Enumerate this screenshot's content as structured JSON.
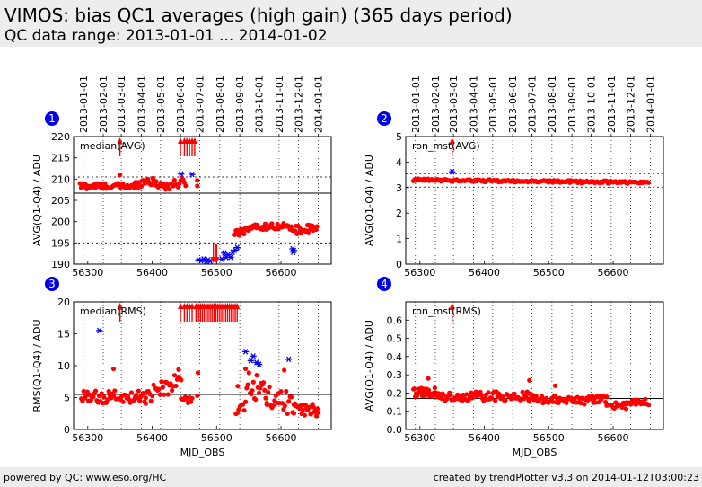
{
  "header": {
    "title": "VIMOS: bias QC1 averages (high gain) (365 days period)",
    "subtitle": "QC data range: 2013-01-01 ... 2014-01-02"
  },
  "footer": {
    "left": "powered by QC: www.eso.org/HC",
    "right": "created by trendPlotter v3.3 on 2014-01-12T03:00:23"
  },
  "date_axis": {
    "labels": [
      "2013-01-01",
      "2013-02-01",
      "2013-03-01",
      "2013-04-01",
      "2013-05-01",
      "2013-06-01",
      "2013-07-01",
      "2013-08-01",
      "2013-09-01",
      "2013-10-01",
      "2013-11-01",
      "2013-12-01",
      "2014-01-01"
    ],
    "mjd": [
      56293,
      56324,
      56352,
      56383,
      56413,
      56444,
      56474,
      56505,
      56536,
      56566,
      56597,
      56627,
      56658
    ]
  },
  "colors": {
    "data": "#ff0000",
    "outlier": "#0000ff",
    "badge": "#0000ee",
    "ref_line": "#000000"
  },
  "chart_data": [
    {
      "panel": "1",
      "type": "scatter",
      "label": "median(AVG)",
      "ylabel": "AVG(Q1-Q4) / ADU",
      "xlabel": "",
      "xlim": [
        56278,
        56678
      ],
      "ylim": [
        190,
        220
      ],
      "xticks": [
        56300,
        56400,
        56500,
        56600
      ],
      "yticks": [
        190,
        195,
        200,
        205,
        210,
        215,
        220
      ],
      "ref_line": 206.7,
      "dotted_lines": [
        195,
        210.5
      ],
      "segments": [
        {
          "x0": 56288,
          "x1": 56330,
          "y0": 208.4,
          "y1": 208.3,
          "n": 26,
          "jitter": 0.8
        },
        {
          "x0": 56335,
          "x1": 56372,
          "y0": 208.5,
          "y1": 208.2,
          "n": 22,
          "jitter": 0.7
        },
        {
          "x0": 56373,
          "x1": 56395,
          "y0": 208.6,
          "y1": 209.8,
          "n": 14,
          "jitter": 0.9
        },
        {
          "x0": 56396,
          "x1": 56418,
          "y0": 209.4,
          "y1": 208.6,
          "n": 14,
          "jitter": 1.0
        },
        {
          "x0": 56419,
          "x1": 56452,
          "y0": 208.2,
          "y1": 209.4,
          "n": 18,
          "jitter": 1.1
        },
        {
          "x0": 56527,
          "x1": 56547,
          "y0": 197.2,
          "y1": 198.2,
          "n": 14,
          "jitter": 0.9
        },
        {
          "x0": 56548,
          "x1": 56598,
          "y0": 198.6,
          "y1": 199.0,
          "n": 30,
          "jitter": 0.7
        },
        {
          "x0": 56600,
          "x1": 56618,
          "y0": 198.8,
          "y1": 198.5,
          "n": 10,
          "jitter": 0.6
        },
        {
          "x0": 56622,
          "x1": 56656,
          "y0": 198.0,
          "y1": 198.4,
          "n": 24,
          "jitter": 1.0
        }
      ],
      "points": [
        [
          56350,
          211.0
        ],
        [
          56470,
          209.7
        ],
        [
          56470,
          208.4
        ],
        [
          56604,
          199.6
        ]
      ],
      "outliers": [
        [
          56445,
          211.2
        ],
        [
          56462,
          211.1
        ],
        [
          56472,
          191.0
        ],
        [
          56476,
          190.8
        ],
        [
          56480,
          191.2
        ],
        [
          56484,
          190.6
        ],
        [
          56487,
          191.0
        ],
        [
          56490,
          190.7
        ],
        [
          56508,
          191.2
        ],
        [
          56512,
          192.6
        ],
        [
          56515,
          191.6
        ],
        [
          56518,
          192.2
        ],
        [
          56522,
          191.6
        ],
        [
          56525,
          192.8
        ],
        [
          56529,
          193.3
        ],
        [
          56532,
          193.9
        ],
        [
          56618,
          193.6
        ],
        [
          56619,
          192.8
        ],
        [
          56620,
          193.2
        ]
      ],
      "arrows_up": [
        56350,
        56444,
        56450,
        56454,
        56458,
        56462,
        56466
      ],
      "arrows_down": [
        56495,
        56498,
        56500
      ]
    },
    {
      "panel": "2",
      "type": "scatter",
      "label": "ron_mst(AVG)",
      "ylabel": "AVG(Q1-Q4) / ADU",
      "xlabel": "",
      "xlim": [
        56278,
        56678
      ],
      "ylim": [
        0,
        5
      ],
      "xticks": [
        56300,
        56400,
        56500,
        56600
      ],
      "yticks": [
        0,
        1,
        2,
        3,
        4,
        5
      ],
      "ref_line": 3.22,
      "dotted_lines": [
        3.02,
        3.55
      ],
      "segments": [
        {
          "x0": 56290,
          "x1": 56655,
          "y0": 3.3,
          "y1": 3.2,
          "n": 180,
          "jitter": 0.05
        }
      ],
      "points": [],
      "outliers": [
        [
          56350,
          3.62
        ]
      ],
      "arrows_up": [
        56350
      ],
      "arrows_down": []
    },
    {
      "panel": "3",
      "type": "scatter",
      "label": "median(RMS)",
      "ylabel": "RMS(Q1-Q4) / ADU",
      "xlabel": "MJD_OBS",
      "xlim": [
        56278,
        56678
      ],
      "ylim": [
        0,
        20
      ],
      "xticks": [
        56300,
        56400,
        56500,
        56600
      ],
      "yticks": [
        0,
        5,
        10,
        15,
        20
      ],
      "ref_line": 5.5,
      "dotted_lines": [],
      "segments": [
        {
          "x0": 56290,
          "x1": 56390,
          "y0": 5.0,
          "y1": 5.2,
          "n": 55,
          "jitter": 1.0
        },
        {
          "x0": 56390,
          "x1": 56445,
          "y0": 5.3,
          "y1": 7.8,
          "n": 28,
          "jitter": 1.4
        },
        {
          "x0": 56445,
          "x1": 56462,
          "y0": 4.8,
          "y1": 4.6,
          "n": 9,
          "jitter": 0.6
        },
        {
          "x0": 56530,
          "x1": 56545,
          "y0": 2.0,
          "y1": 4.0,
          "n": 8,
          "jitter": 0.8
        },
        {
          "x0": 56545,
          "x1": 56578,
          "y0": 8.5,
          "y1": 5.0,
          "n": 20,
          "jitter": 2.2
        },
        {
          "x0": 56578,
          "x1": 56620,
          "y0": 5.0,
          "y1": 4.0,
          "n": 22,
          "jitter": 1.8
        },
        {
          "x0": 56620,
          "x1": 56658,
          "y0": 3.2,
          "y1": 3.0,
          "n": 26,
          "jitter": 1.0
        }
      ],
      "points": [
        [
          56340,
          9.5
        ],
        [
          56471,
          8.9
        ],
        [
          56441,
          9.4
        ],
        [
          56605,
          9.3
        ],
        [
          56533,
          6.8
        ],
        [
          56470,
          5.3
        ]
      ],
      "outliers": [
        [
          56318,
          15.5
        ],
        [
          56545,
          12.2
        ],
        [
          56553,
          10.8
        ],
        [
          56557,
          11.5
        ],
        [
          56562,
          10.5
        ],
        [
          56566,
          10.2
        ],
        [
          56612,
          11.0
        ]
      ],
      "arrows_up": [
        56350,
        56444,
        56450,
        56454,
        56458,
        56462,
        56468,
        56472,
        56475,
        56478,
        56481,
        56484,
        56487,
        56490,
        56493,
        56496,
        56499,
        56502,
        56505,
        56508,
        56511,
        56514,
        56517,
        56520,
        56523,
        56526,
        56529,
        56532
      ],
      "arrows_down": []
    },
    {
      "panel": "4",
      "type": "scatter",
      "label": "ron_mst(RMS)",
      "ylabel": "AVG(Q1-Q4) / ADU",
      "xlabel": "MJD_OBS",
      "xlim": [
        56278,
        56678
      ],
      "ylim": [
        0,
        0.7
      ],
      "xticks": [
        56300,
        56400,
        56500,
        56600
      ],
      "yticks": [
        0.0,
        0.1,
        0.2,
        0.3,
        0.4,
        0.5,
        0.6
      ],
      "ref_line": 0.17,
      "dotted_lines": [],
      "segments": [
        {
          "x0": 56290,
          "x1": 56330,
          "y0": 0.21,
          "y1": 0.2,
          "n": 30,
          "jitter": 0.03
        },
        {
          "x0": 56330,
          "x1": 56470,
          "y0": 0.18,
          "y1": 0.185,
          "n": 80,
          "jitter": 0.025
        },
        {
          "x0": 56470,
          "x1": 56590,
          "y0": 0.17,
          "y1": 0.16,
          "n": 70,
          "jitter": 0.025
        },
        {
          "x0": 56590,
          "x1": 56620,
          "y0": 0.14,
          "y1": 0.13,
          "n": 16,
          "jitter": 0.02
        },
        {
          "x0": 56620,
          "x1": 56655,
          "y0": 0.15,
          "y1": 0.15,
          "n": 22,
          "jitter": 0.02
        }
      ],
      "points": [
        [
          56313,
          0.28
        ],
        [
          56470,
          0.27
        ],
        [
          56510,
          0.24
        ]
      ],
      "outliers": [],
      "arrows_up": [
        56350
      ],
      "arrows_down": []
    }
  ]
}
